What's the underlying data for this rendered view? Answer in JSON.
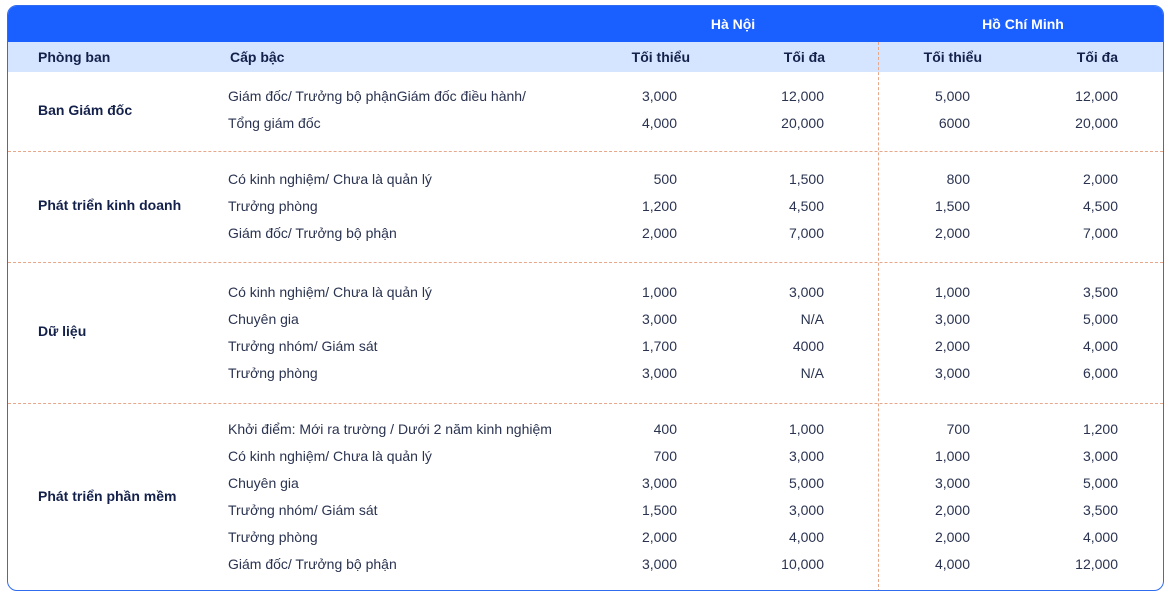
{
  "cities": [
    "Hà Nội",
    "Hồ Chí Minh"
  ],
  "headers": {
    "department": "Phòng ban",
    "level": "Cấp bậc",
    "hn_min": "Tối thiểu",
    "hn_max": "Tối đa",
    "hcm_min": "Tối thiểu",
    "hcm_max": "Tối đa"
  },
  "groups": [
    {
      "department": "Ban Giám đốc",
      "rows": [
        {
          "level": "Giám đốc/ Trưởng bộ phậnGiám đốc điều hành/",
          "hn_min": "3,000",
          "hn_max": "12,000",
          "hcm_min": "5,000",
          "hcm_max": "12,000"
        },
        {
          "level": "Tổng giám đốc",
          "hn_min": "4,000",
          "hn_max": "20,000",
          "hcm_min": "6000",
          "hcm_max": "20,000"
        }
      ]
    },
    {
      "department": "Phát triển kinh doanh",
      "rows": [
        {
          "level": "Có kinh nghiệm/ Chưa là quản lý",
          "hn_min": "500",
          "hn_max": "1,500",
          "hcm_min": "800",
          "hcm_max": "2,000"
        },
        {
          "level": "Trưởng phòng",
          "hn_min": "1,200",
          "hn_max": "4,500",
          "hcm_min": "1,500",
          "hcm_max": "4,500"
        },
        {
          "level": "Giám đốc/ Trưởng bộ phận",
          "hn_min": "2,000",
          "hn_max": "7,000",
          "hcm_min": "2,000",
          "hcm_max": "7,000"
        }
      ]
    },
    {
      "department": "Dữ liệu",
      "rows": [
        {
          "level": "Có kinh nghiệm/ Chưa là quản lý",
          "hn_min": "1,000",
          "hn_max": "3,000",
          "hcm_min": "1,000",
          "hcm_max": "3,500"
        },
        {
          "level": "Chuyên gia",
          "hn_min": "3,000",
          "hn_max": "N/A",
          "hcm_min": "3,000",
          "hcm_max": "5,000"
        },
        {
          "level": "Trưởng nhóm/ Giám sát",
          "hn_min": "1,700",
          "hn_max": "4000",
          "hcm_min": "2,000",
          "hcm_max": "4,000"
        },
        {
          "level": "Trưởng phòng",
          "hn_min": "3,000",
          "hn_max": "N/A",
          "hcm_min": "3,000",
          "hcm_max": "6,000"
        }
      ]
    },
    {
      "department": "Phát triển phần mềm",
      "rows": [
        {
          "level": "Khởi điểm: Mới ra trường / Dưới 2 năm kinh nghiệm",
          "hn_min": "400",
          "hn_max": "1,000",
          "hcm_min": "700",
          "hcm_max": "1,200"
        },
        {
          "level": "Có kinh nghiệm/ Chưa là quản lý",
          "hn_min": "700",
          "hn_max": "3,000",
          "hcm_min": "1,000",
          "hcm_max": "3,000"
        },
        {
          "level": "Chuyên gia",
          "hn_min": "3,000",
          "hn_max": "5,000",
          "hcm_min": "3,000",
          "hcm_max": "5,000"
        },
        {
          "level": "Trưởng nhóm/ Giám sát",
          "hn_min": "1,500",
          "hn_max": "3,000",
          "hcm_min": "2,000",
          "hcm_max": "3,500"
        },
        {
          "level": "Trưởng phòng",
          "hn_min": "2,000",
          "hn_max": "4,000",
          "hcm_min": "2,000",
          "hcm_max": "4,000"
        },
        {
          "level": "Giám đốc/ Trưởng bộ phận",
          "hn_min": "3,000",
          "hn_max": "10,000",
          "hcm_min": "4,000",
          "hcm_max": "12,000"
        }
      ]
    }
  ]
}
